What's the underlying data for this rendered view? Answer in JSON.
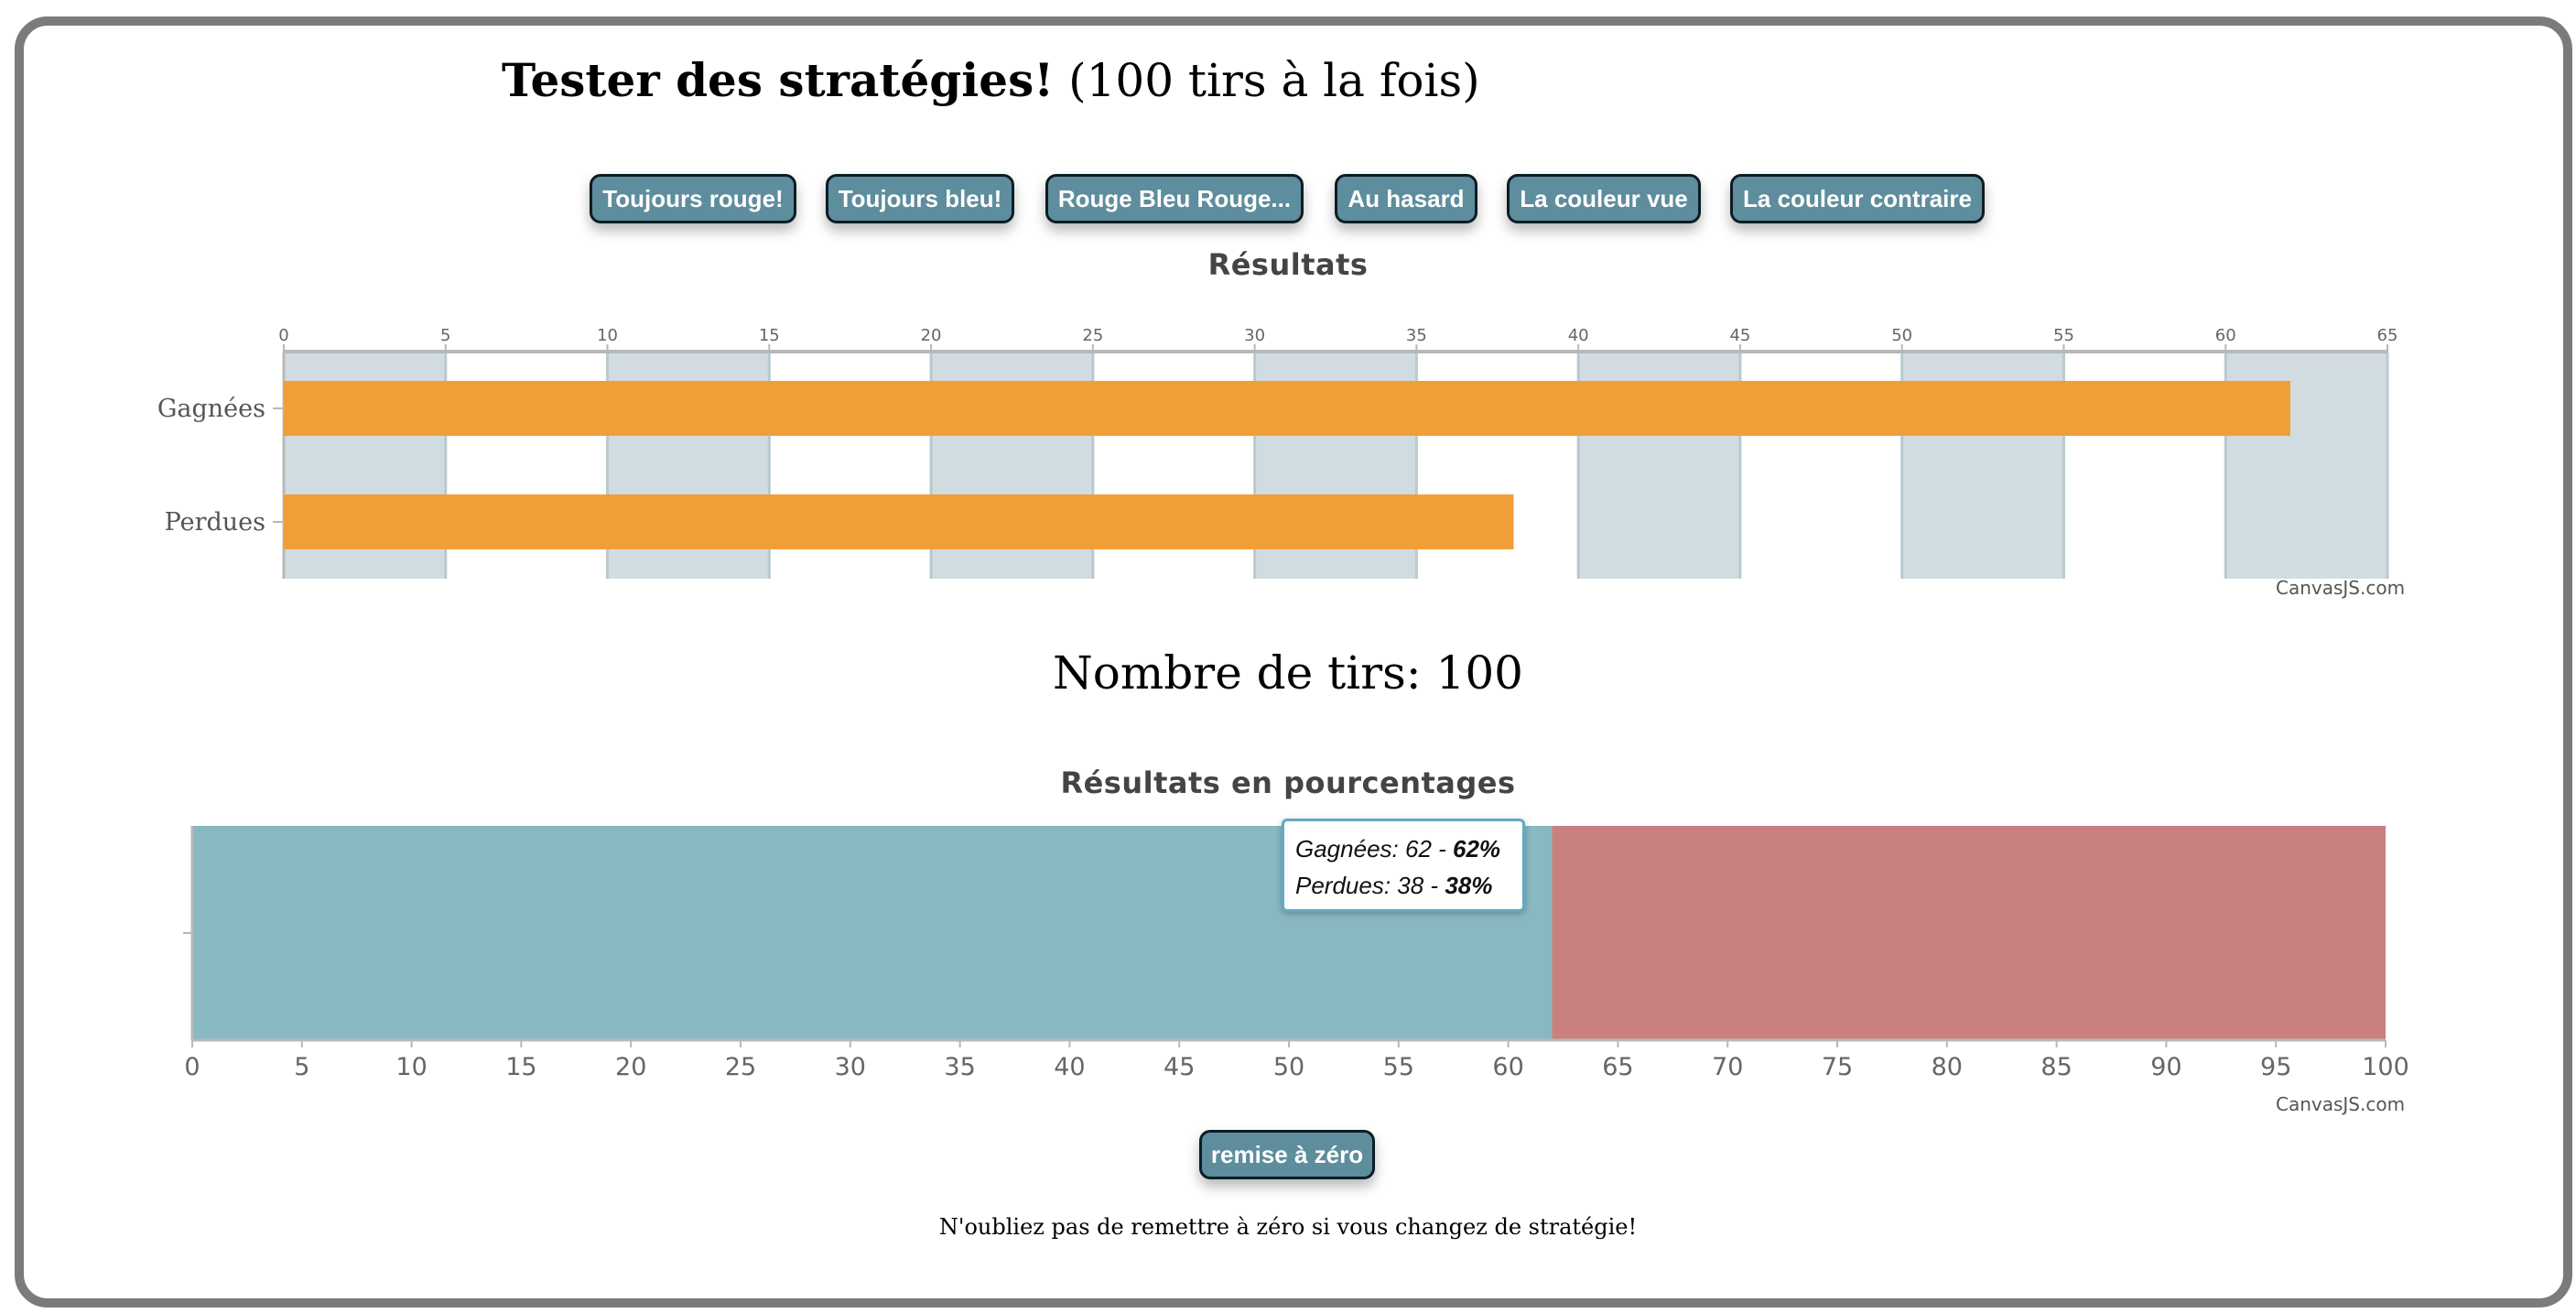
{
  "header": {
    "title_bold": "Tester des stratégies!",
    "title_rest": " (100 tirs à la fois)"
  },
  "strategy_buttons": [
    {
      "label": "Toujours rouge!"
    },
    {
      "label": "Toujours bleu!"
    },
    {
      "label": "Rouge Bleu Rouge..."
    },
    {
      "label": "Au hasard"
    },
    {
      "label": "La couleur vue"
    },
    {
      "label": "La couleur contraire"
    }
  ],
  "chart_data": [
    {
      "type": "bar",
      "orientation": "horizontal",
      "title": "Résultats",
      "categories": [
        "Gagnées",
        "Perdues"
      ],
      "values": [
        62,
        38
      ],
      "xlim": [
        0,
        65
      ],
      "ticks": [
        0,
        5,
        10,
        15,
        20,
        25,
        30,
        35,
        40,
        45,
        50,
        55,
        60,
        65
      ],
      "axis_position": "top",
      "bar_color": "#f09f38",
      "band_color": "#d1dce1",
      "credit": "CanvasJS.com"
    },
    {
      "type": "bar",
      "orientation": "horizontal",
      "stacked": "100%",
      "title": "Résultats en pourcentages",
      "series": [
        {
          "name": "Gagnées",
          "value": 62,
          "percent": 62,
          "color": "#88b9c3"
        },
        {
          "name": "Perdues",
          "value": 38,
          "percent": 38,
          "color": "#c9807e"
        }
      ],
      "xlim": [
        0,
        100
      ],
      "ticks": [
        0,
        5,
        10,
        15,
        20,
        25,
        30,
        35,
        40,
        45,
        50,
        55,
        60,
        65,
        70,
        75,
        80,
        85,
        90,
        95,
        100
      ],
      "axis_position": "bottom",
      "credit": "CanvasJS.com",
      "tooltip": {
        "rows": [
          {
            "name": "Gagnées",
            "text": ": 62 - ",
            "percent": "62%"
          },
          {
            "name": "Perdues",
            "text": ": 38 - ",
            "percent": "38%"
          }
        ]
      }
    }
  ],
  "shots": {
    "text": "Nombre de tirs: 100"
  },
  "reset_button": {
    "label": "remise à zéro"
  },
  "footer_note": "N'oubliez pas de remettre à zéro si vous changez de stratégie!"
}
